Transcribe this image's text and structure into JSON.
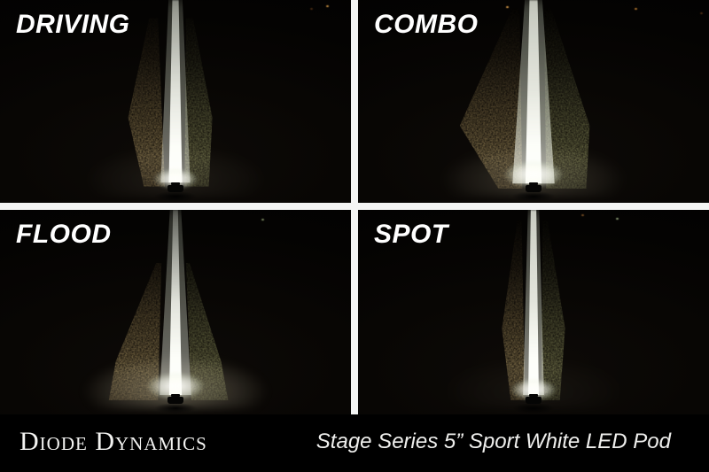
{
  "panels": [
    {
      "label": "DRIVING"
    },
    {
      "label": "COMBO"
    },
    {
      "label": "FLOOD"
    },
    {
      "label": "SPOT"
    }
  ],
  "footer": {
    "brand": "Diode Dynamics",
    "product": "Stage Series 5” Sport White LED Pod"
  },
  "colors": {
    "divider": "#ffffff",
    "footer_background": "#000000",
    "label_text": "#ffffff",
    "beam_white": "#ffffff",
    "spill_tan": "#a58c58",
    "spill_olive": "#8a8f5c",
    "horizon_light_orange": "#e6a54b"
  }
}
